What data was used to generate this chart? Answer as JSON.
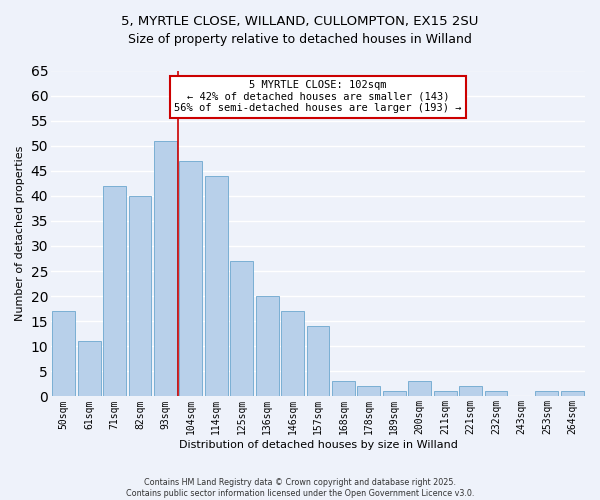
{
  "title": "5, MYRTLE CLOSE, WILLAND, CULLOMPTON, EX15 2SU",
  "subtitle": "Size of property relative to detached houses in Willand",
  "xlabel": "Distribution of detached houses by size in Willand",
  "ylabel": "Number of detached properties",
  "bar_labels": [
    "50sqm",
    "61sqm",
    "71sqm",
    "82sqm",
    "93sqm",
    "104sqm",
    "114sqm",
    "125sqm",
    "136sqm",
    "146sqm",
    "157sqm",
    "168sqm",
    "178sqm",
    "189sqm",
    "200sqm",
    "211sqm",
    "221sqm",
    "232sqm",
    "243sqm",
    "253sqm",
    "264sqm"
  ],
  "bar_values": [
    17,
    11,
    42,
    40,
    51,
    47,
    44,
    27,
    20,
    17,
    14,
    3,
    2,
    1,
    3,
    1,
    2,
    1,
    0,
    1,
    1
  ],
  "bar_color": "#b8d0ea",
  "bar_edge_color": "#7aafd4",
  "vline_color": "#cc0000",
  "ylim": [
    0,
    65
  ],
  "yticks": [
    0,
    5,
    10,
    15,
    20,
    25,
    30,
    35,
    40,
    45,
    50,
    55,
    60,
    65
  ],
  "annotation_title": "5 MYRTLE CLOSE: 102sqm",
  "annotation_line1": "← 42% of detached houses are smaller (143)",
  "annotation_line2": "56% of semi-detached houses are larger (193) →",
  "annotation_box_color": "#ffffff",
  "annotation_box_edge_color": "#cc0000",
  "footer_line1": "Contains HM Land Registry data © Crown copyright and database right 2025.",
  "footer_line2": "Contains public sector information licensed under the Open Government Licence v3.0.",
  "background_color": "#eef2fa",
  "grid_color": "#ffffff",
  "title_fontsize": 9.5,
  "axis_label_fontsize": 8,
  "tick_fontsize": 7,
  "annotation_fontsize": 7.5,
  "footer_fontsize": 5.8
}
